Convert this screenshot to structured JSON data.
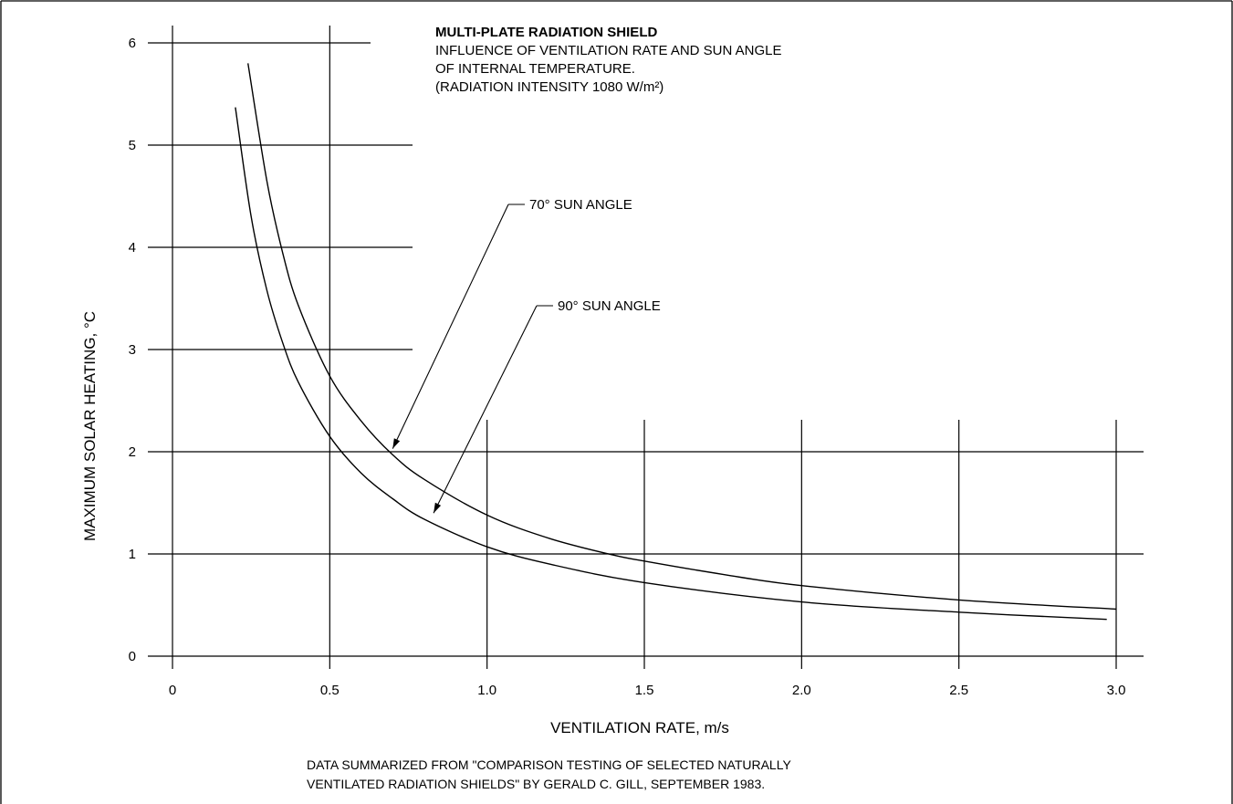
{
  "chart_data": {
    "type": "line",
    "title": "MULTI-PLATE RADIATION SHIELD",
    "subtitle_lines": [
      "INFLUENCE OF VENTILATION RATE AND SUN ANGLE",
      "OF INTERNAL TEMPERATURE.",
      "(RADIATION INTENSITY 1080 W/m²)"
    ],
    "xlabel": "VENTILATION RATE, m/s",
    "ylabel": "MAXIMUM SOLAR HEATING, °C",
    "xlim": [
      0,
      3.0
    ],
    "ylim": [
      0,
      6
    ],
    "x_ticks": [
      0,
      0.5,
      1.0,
      1.5,
      2.0,
      2.5,
      3.0
    ],
    "x_tick_labels": [
      "0",
      "0.5",
      "1.0",
      "1.5",
      "2.0",
      "2.5",
      "3.0"
    ],
    "y_ticks": [
      0,
      1,
      2,
      3,
      4,
      5,
      6
    ],
    "y_tick_labels": [
      "0",
      "1",
      "2",
      "3",
      "4",
      "5",
      "6"
    ],
    "grid": true,
    "series": [
      {
        "name": "70° SUN ANGLE",
        "x": [
          0.24,
          0.3,
          0.35,
          0.4,
          0.5,
          0.6,
          0.7,
          0.8,
          1.0,
          1.2,
          1.4,
          1.5,
          1.75,
          2.0,
          2.5,
          3.0
        ],
        "y": [
          5.8,
          4.65,
          3.95,
          3.43,
          2.74,
          2.3,
          1.97,
          1.73,
          1.38,
          1.15,
          0.99,
          0.93,
          0.8,
          0.69,
          0.55,
          0.46
        ]
      },
      {
        "name": "90° SUN ANGLE",
        "x": [
          0.2,
          0.25,
          0.3,
          0.35,
          0.4,
          0.5,
          0.6,
          0.7,
          0.8,
          1.0,
          1.2,
          1.5,
          2.0,
          2.5,
          2.97
        ],
        "y": [
          5.37,
          4.3,
          3.58,
          3.07,
          2.68,
          2.15,
          1.79,
          1.54,
          1.34,
          1.07,
          0.9,
          0.72,
          0.53,
          0.43,
          0.36
        ]
      }
    ],
    "annotations": [
      {
        "text": "70° SUN ANGLE",
        "points_to": {
          "x": 0.7,
          "y": 2.03
        }
      },
      {
        "text": "90° SUN ANGLE",
        "points_to": {
          "x": 0.83,
          "y": 1.4
        }
      }
    ],
    "footnote_lines": [
      "DATA SUMMARIZED FROM \"COMPARISON TESTING OF SELECTED NATURALLY",
      "VENTILATED RADIATION SHIELDS\" BY GERALD C. GILL, SEPTEMBER 1983."
    ]
  }
}
